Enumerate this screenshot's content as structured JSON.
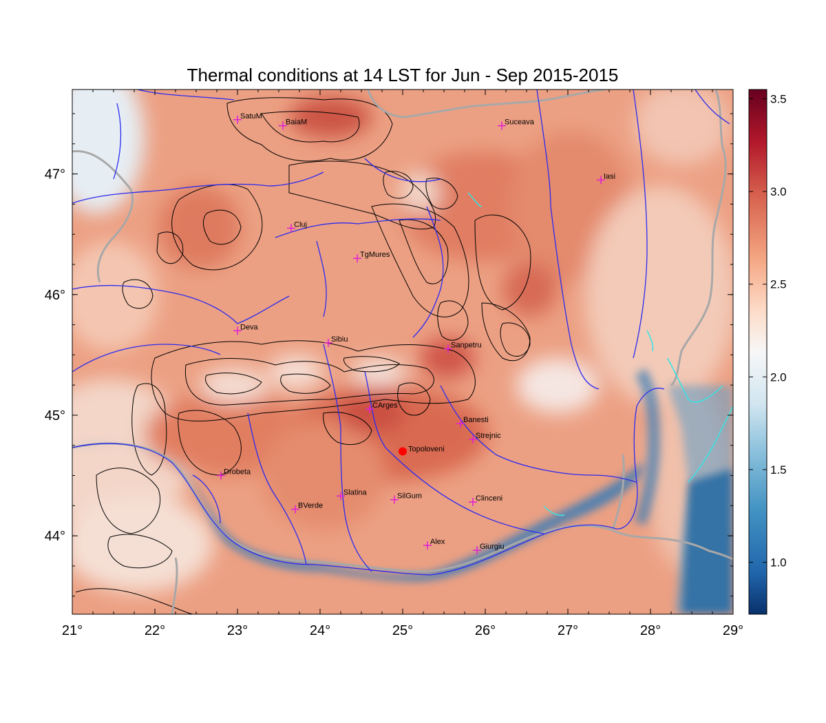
{
  "title": "Thermal conditions at 14 LST for Jun - Sep  2015-2015",
  "map": {
    "lon_range": [
      21,
      29
    ],
    "lat_range": [
      43.35,
      47.7
    ],
    "x_ticks": [
      {
        "value": 21,
        "label": "21°"
      },
      {
        "value": 22,
        "label": "22°"
      },
      {
        "value": 23,
        "label": "23°"
      },
      {
        "value": 24,
        "label": "24°"
      },
      {
        "value": 25,
        "label": "25°"
      },
      {
        "value": 26,
        "label": "26°"
      },
      {
        "value": 27,
        "label": "27°"
      },
      {
        "value": 28,
        "label": "28°"
      },
      {
        "value": 29,
        "label": "29°"
      }
    ],
    "y_ticks": [
      {
        "value": 44,
        "label": "44°"
      },
      {
        "value": 45,
        "label": "45°"
      },
      {
        "value": 46,
        "label": "46°"
      },
      {
        "value": 47,
        "label": "47°"
      }
    ],
    "colorbar": {
      "range": [
        0.72,
        3.55
      ],
      "ticks": [
        {
          "value": 1.0,
          "label": "1.0"
        },
        {
          "value": 1.5,
          "label": "1.5"
        },
        {
          "value": 2.0,
          "label": "2.0"
        },
        {
          "value": 2.5,
          "label": "2.5"
        },
        {
          "value": 3.0,
          "label": "3.0"
        },
        {
          "value": 3.5,
          "label": "3.5"
        }
      ],
      "colors": [
        "#08306b",
        "#2166ac",
        "#4393c3",
        "#92c5de",
        "#d1e5f0",
        "#f7f7f7",
        "#fddbc7",
        "#f4a582",
        "#d6604d",
        "#b2182b",
        "#67001f"
      ]
    },
    "stations": [
      {
        "name": "SatuM",
        "lon": 23.0,
        "lat": 47.45
      },
      {
        "name": "BaiaM",
        "lon": 23.55,
        "lat": 47.4
      },
      {
        "name": "Suceava",
        "lon": 26.2,
        "lat": 47.4
      },
      {
        "name": "Iasi",
        "lon": 27.4,
        "lat": 46.95
      },
      {
        "name": "Cluj",
        "lon": 23.65,
        "lat": 46.55
      },
      {
        "name": "TgMures",
        "lon": 24.45,
        "lat": 46.3
      },
      {
        "name": "Deva",
        "lon": 23.0,
        "lat": 45.7
      },
      {
        "name": "Sibiu",
        "lon": 24.1,
        "lat": 45.6
      },
      {
        "name": "Sanpetru",
        "lon": 25.55,
        "lat": 45.55
      },
      {
        "name": "CArges",
        "lon": 24.6,
        "lat": 45.05
      },
      {
        "name": "Banesti",
        "lon": 25.7,
        "lat": 44.93
      },
      {
        "name": "Strejnic",
        "lon": 25.85,
        "lat": 44.8
      },
      {
        "name": "Drobeta",
        "lon": 22.8,
        "lat": 44.5
      },
      {
        "name": "Slatina",
        "lon": 24.25,
        "lat": 44.33
      },
      {
        "name": "SilGum",
        "lon": 24.9,
        "lat": 44.3
      },
      {
        "name": "Clinceni",
        "lon": 25.85,
        "lat": 44.28
      },
      {
        "name": "BVerde",
        "lon": 23.7,
        "lat": 44.22
      },
      {
        "name": "Alex",
        "lon": 25.3,
        "lat": 43.92
      },
      {
        "name": "Giurgiu",
        "lon": 25.9,
        "lat": 43.88
      }
    ],
    "highlight_station": {
      "name": "Topoloveni",
      "lon": 25.0,
      "lat": 44.7
    },
    "colors": {
      "station_marker": "#e01fd6",
      "highlight": "#ff0000",
      "rivers": "#2a2af0",
      "borders": "#a8a8a8",
      "contours": "#000000",
      "lakes": "#33e6e6"
    }
  }
}
